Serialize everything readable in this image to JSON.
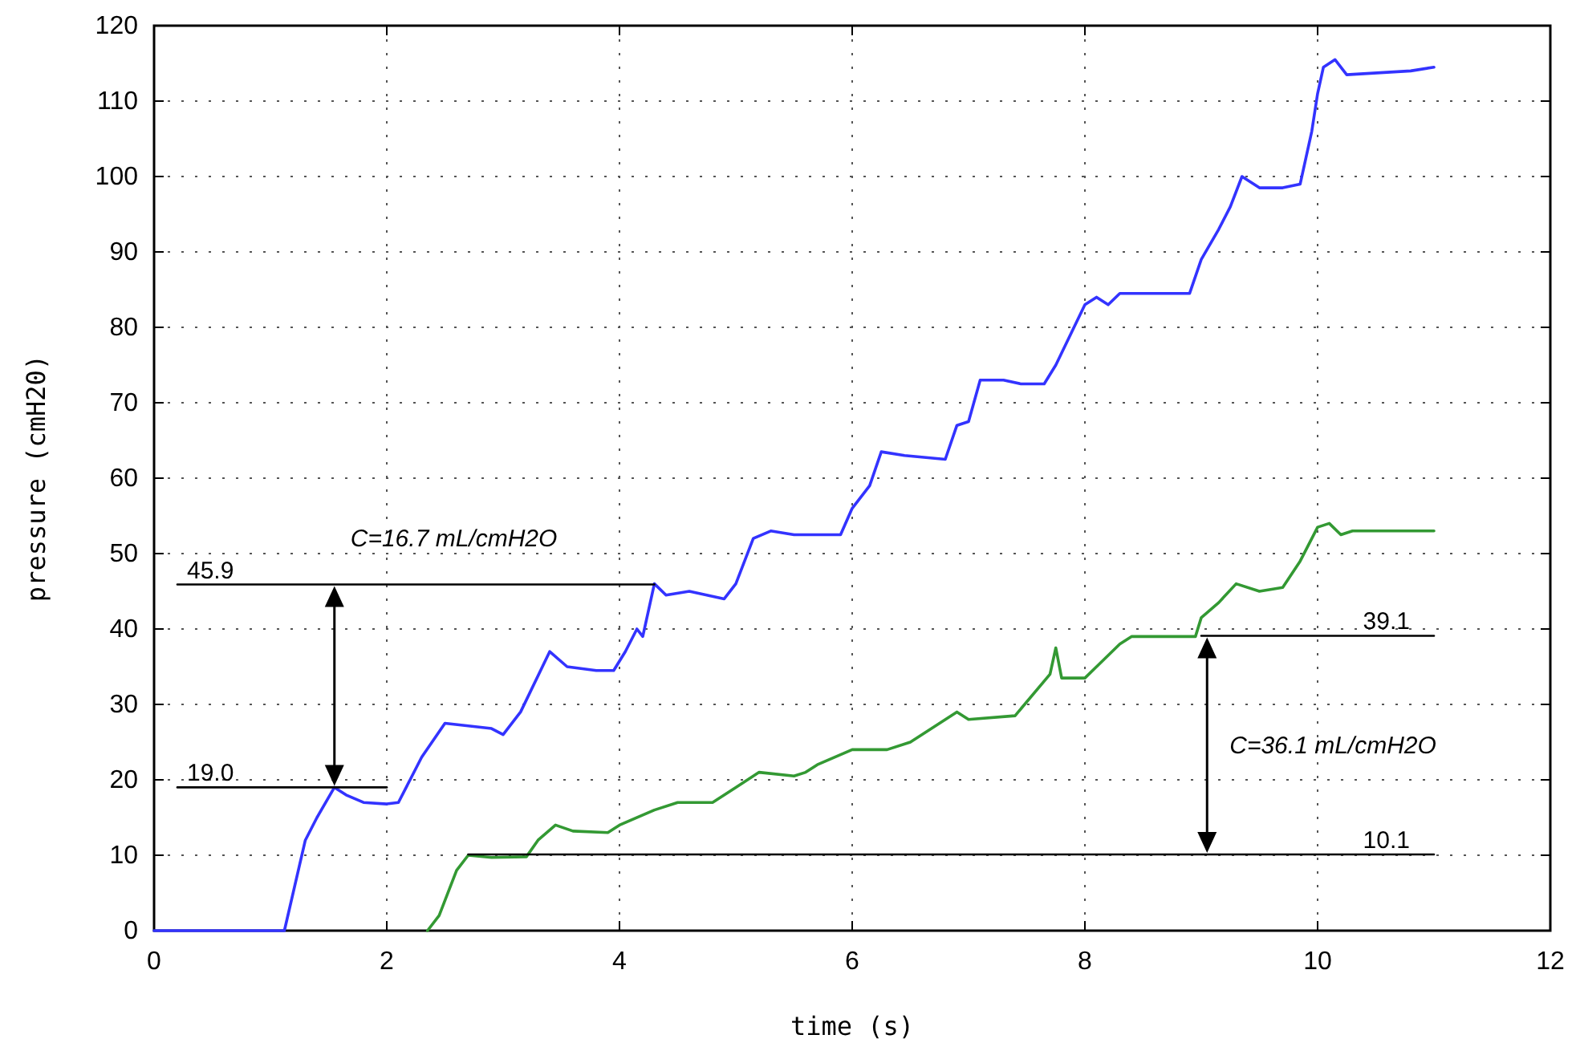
{
  "chart_data": {
    "type": "line",
    "xlabel": "time (s)",
    "ylabel": "pressure (cmH20)",
    "xlim": [
      0,
      12
    ],
    "xticks": [
      0,
      2,
      4,
      6,
      8,
      10,
      12
    ],
    "ylim": [
      0,
      120
    ],
    "yticks": [
      0,
      10,
      20,
      30,
      40,
      50,
      60,
      70,
      80,
      90,
      100,
      110,
      120
    ],
    "grid": true,
    "line_style": "solid",
    "marker": "none",
    "series": [
      {
        "color": "#3333ff",
        "x": [
          0,
          1.12,
          1.3,
          1.4,
          1.55,
          1.65,
          1.8,
          2.0,
          2.1,
          2.3,
          2.5,
          2.9,
          3.0,
          3.15,
          3.4,
          3.55,
          3.8,
          3.95,
          4.05,
          4.15,
          4.2,
          4.3,
          4.4,
          4.6,
          4.9,
          5.0,
          5.15,
          5.3,
          5.5,
          5.9,
          6.0,
          6.15,
          6.25,
          6.45,
          6.8,
          6.9,
          7.0,
          7.1,
          7.3,
          7.45,
          7.65,
          7.75,
          8.0,
          8.1,
          8.2,
          8.3,
          8.9,
          9.0,
          9.15,
          9.25,
          9.35,
          9.5,
          9.7,
          9.85,
          9.95,
          10.0,
          10.05,
          10.15,
          10.25,
          10.8,
          11.0
        ],
        "values": [
          0,
          0,
          12,
          15,
          19,
          18,
          17,
          16.8,
          17,
          23,
          27.5,
          26.8,
          26,
          29,
          37,
          35,
          34.5,
          34.5,
          37,
          40,
          39,
          46,
          44.5,
          45,
          44,
          46,
          52,
          53,
          52.5,
          52.5,
          56,
          59,
          63.5,
          63,
          62.5,
          67,
          67.5,
          73,
          73,
          72.5,
          72.5,
          75,
          83,
          84,
          83,
          84.5,
          84.5,
          89,
          93,
          96,
          100,
          98.5,
          98.5,
          99,
          106,
          111,
          114.5,
          115.5,
          113.5,
          114,
          114.5
        ]
      },
      {
        "color": "#339933",
        "x": [
          2.35,
          2.45,
          2.6,
          2.7,
          2.9,
          3.2,
          3.3,
          3.45,
          3.6,
          3.9,
          4.0,
          4.3,
          4.5,
          4.8,
          5.0,
          5.2,
          5.5,
          5.6,
          5.7,
          6.0,
          6.3,
          6.5,
          6.9,
          7.0,
          7.4,
          7.7,
          7.75,
          7.8,
          8.0,
          8.1,
          8.3,
          8.4,
          8.95,
          9.0,
          9.15,
          9.3,
          9.5,
          9.7,
          9.85,
          10.0,
          10.1,
          10.2,
          10.3,
          11.0
        ],
        "values": [
          0,
          2,
          8,
          10,
          9.7,
          9.8,
          12,
          14,
          13.2,
          13,
          14,
          16,
          17,
          17,
          19,
          21,
          20.5,
          21,
          22,
          24,
          24,
          25,
          29,
          28,
          28.5,
          34,
          37.5,
          33.5,
          33.5,
          35,
          38,
          39,
          39,
          41.5,
          43.5,
          46,
          45,
          45.5,
          49,
          53.5,
          54,
          52.5,
          53,
          53
        ]
      },
      {
        "color": "#000000",
        "x": [
          0.2,
          4.3
        ],
        "values": [
          45.9,
          45.9
        ],
        "value_labels": [
          "45.9",
          null
        ]
      },
      {
        "color": "#000000",
        "x": [
          0.2,
          2.0
        ],
        "values": [
          19.0,
          19.0
        ],
        "value_labels": [
          "19.0",
          null
        ]
      },
      {
        "color": "#000000",
        "x": [
          9.0,
          11.0
        ],
        "values": [
          39.1,
          39.1
        ],
        "value_labels": [
          null,
          "39.1"
        ]
      },
      {
        "color": "#000000",
        "x": [
          2.7,
          11.0
        ],
        "values": [
          10.1,
          10.1
        ],
        "value_labels": [
          null,
          "10.1"
        ]
      }
    ],
    "annotations": [
      "C=16.7 mL/cmH2O",
      "C=36.1 mL/cmH2O"
    ]
  }
}
